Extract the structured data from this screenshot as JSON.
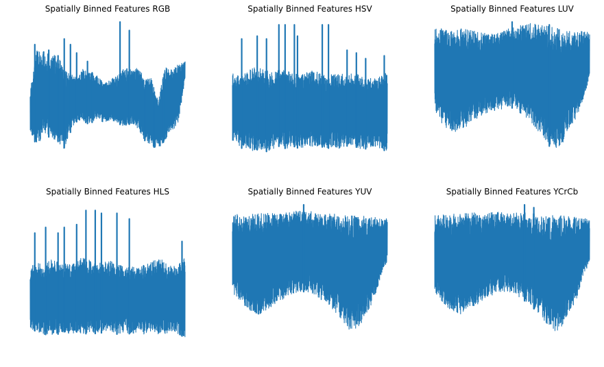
{
  "figure": {
    "background": "#ffffff",
    "line_color": "#1f77b4",
    "axes": "off"
  },
  "chart_data": [
    {
      "type": "line",
      "title": "Spatially Binned Features RGB",
      "series": [
        {
          "name": "RGB",
          "n_points": 3072,
          "ylim": [
            0,
            255
          ],
          "range": [
            25,
            250
          ],
          "envelope_top": [
            130,
            200,
            200,
            190,
            195,
            165,
            160,
            150,
            170,
            160,
            155,
            140,
            150,
            155,
            170,
            165,
            170,
            150,
            150,
            110,
            170,
            165,
            175,
            180
          ],
          "envelope_bottom": [
            55,
            30,
            50,
            45,
            40,
            25,
            55,
            75,
            70,
            70,
            80,
            70,
            75,
            70,
            65,
            70,
            60,
            40,
            30,
            25,
            40,
            55,
            70,
            150
          ],
          "spikes": [
            [
              0.03,
              210
            ],
            [
              0.12,
              200
            ],
            [
              0.18,
              190
            ],
            [
              0.22,
              220
            ],
            [
              0.26,
              210
            ],
            [
              0.3,
              195
            ],
            [
              0.37,
              180
            ],
            [
              0.4,
              160
            ],
            [
              0.58,
              250
            ],
            [
              0.64,
              235
            ],
            [
              0.74,
              130
            ],
            [
              0.8,
              110
            ],
            [
              0.86,
              140
            ]
          ]
        }
      ]
    },
    {
      "type": "line",
      "title": "Spatially Binned Features HSV",
      "series": [
        {
          "name": "HSV",
          "n_points": 3072,
          "ylim": [
            0,
            255
          ],
          "range": [
            0,
            245
          ],
          "envelope_top": [
            160,
            155,
            160,
            170,
            170,
            165,
            160,
            165,
            165,
            160,
            155,
            160,
            165,
            160,
            155,
            160,
            160,
            155,
            160,
            155,
            150,
            150,
            155,
            165
          ],
          "envelope_bottom": [
            40,
            30,
            20,
            20,
            25,
            20,
            25,
            30,
            25,
            30,
            25,
            30,
            25,
            30,
            25,
            30,
            25,
            30,
            30,
            25,
            25,
            30,
            25,
            20
          ],
          "spikes": [
            [
              0.06,
              220
            ],
            [
              0.16,
              225
            ],
            [
              0.22,
              220
            ],
            [
              0.3,
              245
            ],
            [
              0.34,
              245
            ],
            [
              0.4,
              245
            ],
            [
              0.42,
              225
            ],
            [
              0.58,
              245
            ],
            [
              0.62,
              245
            ],
            [
              0.74,
              200
            ],
            [
              0.8,
              195
            ],
            [
              0.86,
              185
            ],
            [
              0.98,
              190
            ]
          ]
        }
      ]
    },
    {
      "type": "line",
      "title": "Spatially Binned Features LUV",
      "series": [
        {
          "name": "LUV",
          "n_points": 3072,
          "ylim": [
            0,
            255
          ],
          "range": [
            20,
            250
          ],
          "envelope_top": [
            240,
            238,
            236,
            238,
            238,
            236,
            234,
            232,
            230,
            232,
            236,
            240,
            242,
            246,
            248,
            246,
            244,
            242,
            240,
            236,
            234,
            232,
            234,
            232
          ],
          "envelope_bottom": [
            95,
            70,
            60,
            55,
            60,
            65,
            75,
            85,
            90,
            92,
            95,
            100,
            95,
            85,
            75,
            60,
            50,
            30,
            25,
            35,
            60,
            80,
            110,
            150
          ],
          "spikes": [
            [
              0.5,
              250
            ],
            [
              0.74,
              245
            ]
          ]
        }
      ]
    },
    {
      "type": "line",
      "title": "Spatially Binned Features HLS",
      "series": [
        {
          "name": "HLS",
          "n_points": 3072,
          "ylim": [
            0,
            255
          ],
          "range": [
            0,
            250
          ],
          "envelope_top": [
            140,
            150,
            140,
            155,
            150,
            150,
            145,
            150,
            160,
            150,
            145,
            150,
            150,
            145,
            140,
            140,
            140,
            145,
            150,
            155,
            150,
            140,
            145,
            160
          ],
          "envelope_bottom": [
            30,
            25,
            20,
            20,
            20,
            25,
            20,
            25,
            20,
            25,
            20,
            25,
            25,
            20,
            25,
            20,
            25,
            20,
            25,
            20,
            20,
            25,
            20,
            15
          ],
          "spikes": [
            [
              0.03,
              200
            ],
            [
              0.1,
              210
            ],
            [
              0.18,
              200
            ],
            [
              0.22,
              210
            ],
            [
              0.3,
              215
            ],
            [
              0.36,
              240
            ],
            [
              0.42,
              240
            ],
            [
              0.46,
              235
            ],
            [
              0.56,
              235
            ],
            [
              0.64,
              225
            ],
            [
              0.98,
              185
            ]
          ]
        }
      ]
    },
    {
      "type": "line",
      "title": "Spatially Binned Features YUV",
      "series": [
        {
          "name": "YUV",
          "n_points": 3072,
          "ylim": [
            0,
            255
          ],
          "range": [
            20,
            250
          ],
          "envelope_top": [
            232,
            234,
            232,
            234,
            234,
            236,
            235,
            234,
            236,
            238,
            240,
            240,
            238,
            236,
            236,
            234,
            232,
            232,
            230,
            232,
            230,
            228,
            226,
            226
          ],
          "envelope_bottom": [
            95,
            80,
            65,
            60,
            55,
            62,
            70,
            80,
            85,
            92,
            96,
            96,
            92,
            82,
            75,
            62,
            50,
            30,
            25,
            35,
            60,
            80,
            120,
            150
          ],
          "spikes": [
            [
              0.46,
              250
            ]
          ]
        }
      ]
    },
    {
      "type": "line",
      "title": "Spatially Binned Features YCrCb",
      "series": [
        {
          "name": "YCrCb",
          "n_points": 3072,
          "ylim": [
            0,
            255
          ],
          "range": [
            20,
            250
          ],
          "envelope_top": [
            232,
            234,
            232,
            234,
            234,
            236,
            236,
            234,
            236,
            237,
            238,
            238,
            236,
            236,
            236,
            234,
            232,
            232,
            230,
            232,
            230,
            228,
            226,
            226
          ],
          "envelope_bottom": [
            95,
            80,
            65,
            60,
            55,
            62,
            70,
            80,
            85,
            92,
            96,
            96,
            92,
            82,
            75,
            62,
            50,
            30,
            25,
            35,
            60,
            80,
            120,
            150
          ],
          "spikes": [
            [
              0.58,
              250
            ],
            [
              0.64,
              245
            ]
          ]
        }
      ]
    }
  ]
}
